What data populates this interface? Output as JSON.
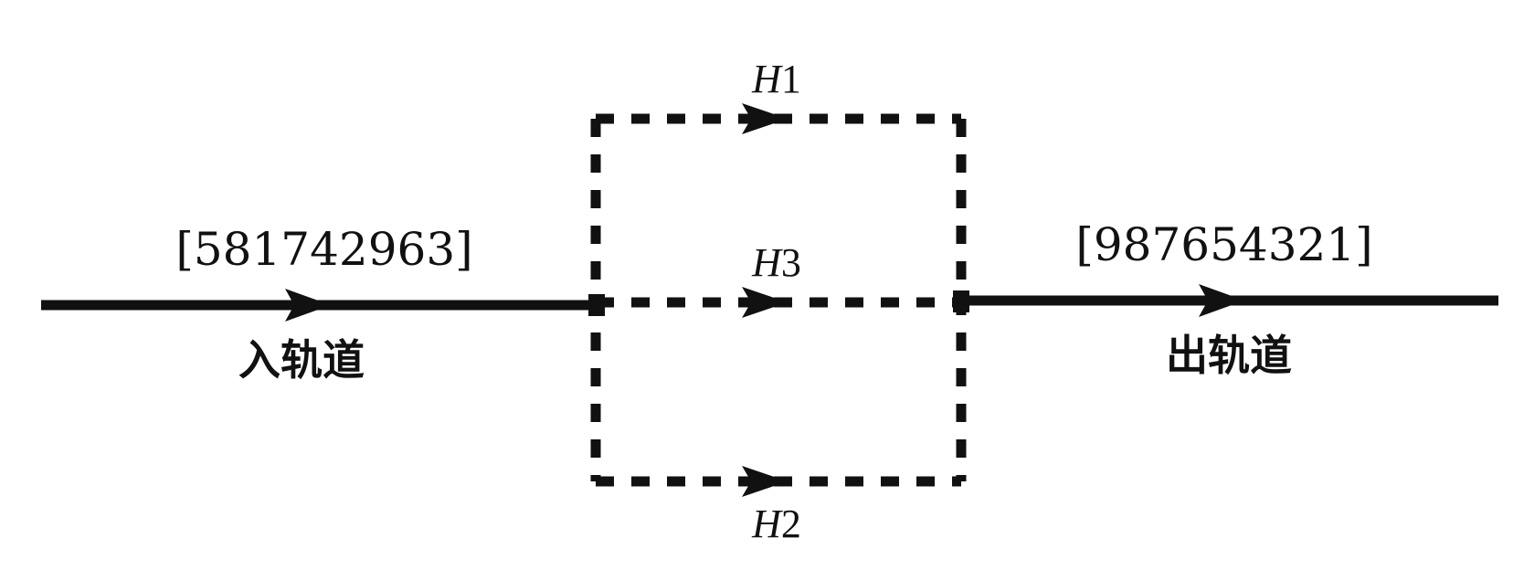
{
  "diagram": {
    "input_sequence": "[581742963]",
    "output_sequence": "[987654321]",
    "input_track_label": "入轨道",
    "output_track_label": "出轨道",
    "holding_tracks": [
      {
        "var": "H",
        "num": "1"
      },
      {
        "var": "H",
        "num": "3"
      },
      {
        "var": "H",
        "num": "2"
      }
    ]
  }
}
